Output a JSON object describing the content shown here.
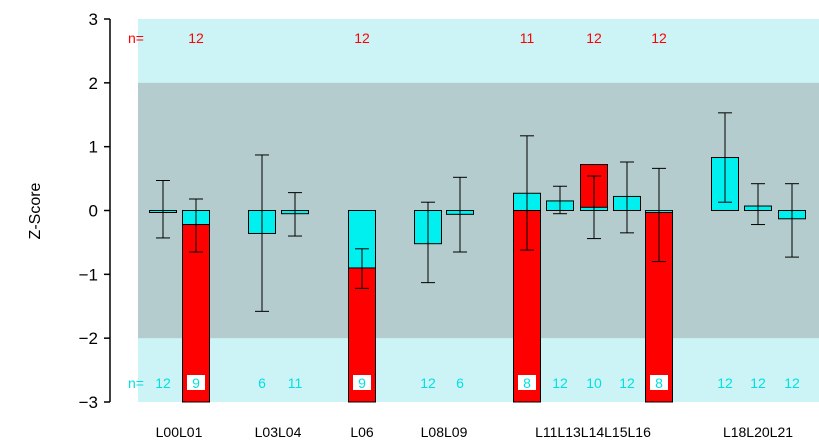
{
  "chart_data": {
    "type": "bar",
    "ylabel": "Z-Score",
    "ylim": [
      -3,
      3
    ],
    "yticks": [
      3,
      2,
      1,
      0,
      -1,
      -2,
      -3
    ],
    "ytick_labels": [
      "3",
      "2",
      "1",
      "0",
      "−1",
      "−2",
      "−3"
    ],
    "band_inner": [
      -2,
      2
    ],
    "colors": {
      "outer_band": "#ccf4f6",
      "inner_band": "#b4cccd",
      "cyan_bar": "#00f0f0",
      "red_bar": "#ff0000",
      "n_top_text": "#ff0000",
      "n_bottom_text": "#00e0e0"
    },
    "n_prefix_top": "n=",
    "n_prefix_bottom": "n=",
    "category_groups": [
      "L00L01",
      "L03L04",
      "L06",
      "L08L09",
      "L11L13L14L15L16",
      "L18L20L21"
    ],
    "items": [
      {
        "id": "L00",
        "cyan": 0,
        "red": null,
        "err_low": -0.43,
        "err_high": 0.47,
        "n_top": "",
        "n_bottom": "12"
      },
      {
        "id": "L01",
        "cyan": -0.22,
        "red": -3.0,
        "err_low": -0.65,
        "err_high": 0.18,
        "n_top": "12",
        "n_bottom": "9"
      },
      {
        "id": "L03",
        "cyan": -0.36,
        "red": null,
        "err_low": -1.58,
        "err_high": 0.87,
        "n_top": "",
        "n_bottom": "6"
      },
      {
        "id": "L04",
        "cyan": -0.05,
        "red": null,
        "err_low": -0.4,
        "err_high": 0.28,
        "n_top": "",
        "n_bottom": "11"
      },
      {
        "id": "L06",
        "cyan": -0.9,
        "red": -3.0,
        "err_low": -1.22,
        "err_high": -0.6,
        "n_top": "12",
        "n_bottom": "9"
      },
      {
        "id": "L08",
        "cyan": -0.52,
        "red": null,
        "err_low": -1.13,
        "err_high": 0.13,
        "n_top": "",
        "n_bottom": "12"
      },
      {
        "id": "L09",
        "cyan": -0.06,
        "red": null,
        "err_low": -0.65,
        "err_high": 0.52,
        "n_top": "",
        "n_bottom": "6"
      },
      {
        "id": "L11",
        "cyan": 0.27,
        "red": -3.0,
        "err_low": -0.62,
        "err_high": 1.17,
        "n_top": "11",
        "n_bottom": "8"
      },
      {
        "id": "L13",
        "cyan": 0.15,
        "red": null,
        "err_low": -0.05,
        "err_high": 0.38,
        "n_top": "",
        "n_bottom": "12"
      },
      {
        "id": "L14",
        "cyan": 0.05,
        "red": 0.72,
        "err_low": -0.44,
        "err_high": 0.54,
        "n_top": "12",
        "n_bottom": "10"
      },
      {
        "id": "L15",
        "cyan": 0.22,
        "red": null,
        "err_low": -0.35,
        "err_high": 0.76,
        "n_top": "",
        "n_bottom": "12"
      },
      {
        "id": "L16",
        "cyan": -0.03,
        "red": -3.0,
        "err_low": -0.8,
        "err_high": 0.66,
        "n_top": "12",
        "n_bottom": "8"
      },
      {
        "id": "L18",
        "cyan": 0.83,
        "red": null,
        "err_low": 0.13,
        "err_high": 1.53,
        "n_top": "",
        "n_bottom": "12"
      },
      {
        "id": "L20",
        "cyan": 0.07,
        "red": null,
        "err_low": -0.22,
        "err_high": 0.42,
        "n_top": "",
        "n_bottom": "12"
      },
      {
        "id": "L21",
        "cyan": -0.13,
        "red": null,
        "err_low": -0.73,
        "err_high": 0.42,
        "n_top": "",
        "n_bottom": "12"
      }
    ]
  }
}
